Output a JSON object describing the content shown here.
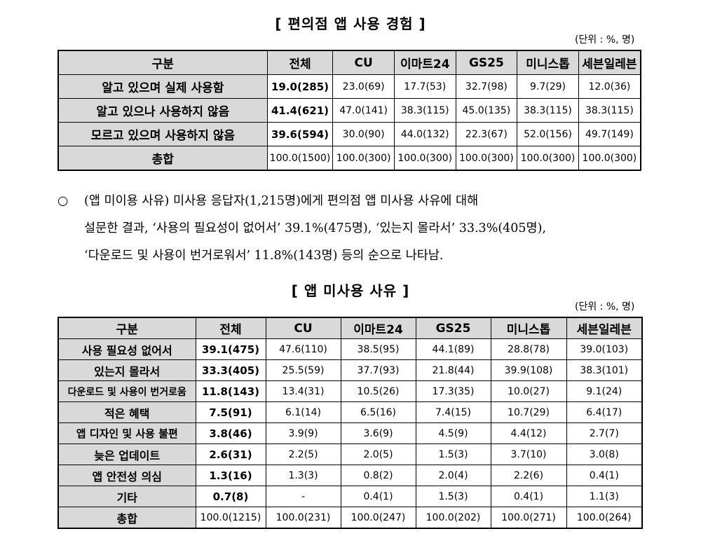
{
  "table1": {
    "title": "[ 편의점 앱 사용 경험 ]",
    "unit": "(단위 : %, 명)",
    "headers": [
      "구분",
      "전체",
      "CU",
      "이마트24",
      "GS25",
      "미니스톱",
      "세븐일레븐"
    ],
    "rows": [
      {
        "label": "알고 있으며 실제 사용함",
        "values": [
          "19.0(285)",
          "23.0(69)",
          "17.7(53)",
          "32.7(98)",
          "9.7(29)",
          "12.0(36)"
        ]
      },
      {
        "label": "알고 있으나 사용하지 않음",
        "values": [
          "41.4(621)",
          "47.0(141)",
          "38.3(115)",
          "45.0(135)",
          "38.3(115)",
          "38.3(115)"
        ]
      },
      {
        "label": "모르고 있으며 사용하지 않음",
        "values": [
          "39.6(594)",
          "30.0(90)",
          "44.0(132)",
          "22.3(67)",
          "52.0(156)",
          "49.7(149)"
        ]
      },
      {
        "label": "총합",
        "values": [
          "100.0(1500)",
          "100.0(300)",
          "100.0(300)",
          "100.0(300)",
          "100.0(300)",
          "100.0(300)"
        ]
      }
    ]
  },
  "paragraph": {
    "bullet": "○",
    "lines": [
      "(앱 미이용 사유) 미사용 응답자(1,215명)에게 편의점 앱 미사용 사유에 대해",
      "설문한 결과, ‘사용의 필요성이 없어서’ 39.1%(475명), ‘있는지 몰라서’ 33.3%(405명),",
      "‘다운로드 및 사용이 번거로워서’ 11.8%(143명) 등의 순으로 나타남."
    ]
  },
  "table2": {
    "title": "[ 앱 미사용 사유 ]",
    "unit": "(단위 : %, 명)",
    "headers": [
      "구분",
      "전체",
      "CU",
      "이마트24",
      "GS25",
      "미니스톱",
      "세븐일레븐"
    ],
    "rows": [
      {
        "label": "사용 필요성 없어서",
        "values": [
          "39.1(475)",
          "47.6(110)",
          "38.5(95)",
          "44.1(89)",
          "28.8(78)",
          "39.0(103)"
        ]
      },
      {
        "label": "있는지 몰라서",
        "values": [
          "33.3(405)",
          "25.5(59)",
          "37.7(93)",
          "21.8(44)",
          "39.9(108)",
          "38.3(101)"
        ]
      },
      {
        "label": "다운로드 및 사용이 번거로움",
        "values": [
          "11.8(143)",
          "13.4(31)",
          "10.5(26)",
          "17.3(35)",
          "10.0(27)",
          "9.1(24)"
        ]
      },
      {
        "label": "적은 혜택",
        "values": [
          "7.5(91)",
          "6.1(14)",
          "6.5(16)",
          "7.4(15)",
          "10.7(29)",
          "6.4(17)"
        ]
      },
      {
        "label": "앱 디자인 및 사용 불편",
        "values": [
          "3.8(46)",
          "3.9(9)",
          "3.6(9)",
          "4.5(9)",
          "4.4(12)",
          "2.7(7)"
        ]
      },
      {
        "label": "늦은 업데이트",
        "values": [
          "2.6(31)",
          "2.2(5)",
          "2.0(5)",
          "1.5(3)",
          "3.7(10)",
          "3.0(8)"
        ]
      },
      {
        "label": "앱 안전성 의심",
        "values": [
          "1.3(16)",
          "1.3(3)",
          "0.8(2)",
          "2.0(4)",
          "2.2(6)",
          "0.4(1)"
        ]
      },
      {
        "label": "기타",
        "values": [
          "0.7(8)",
          "-",
          "0.4(1)",
          "1.5(3)",
          "0.4(1)",
          "1.1(3)"
        ]
      },
      {
        "label": "총합",
        "values": [
          "100.0(1215)",
          "100.0(231)",
          "100.0(247)",
          "100.0(202)",
          "100.0(271)",
          "100.0(264)"
        ]
      }
    ]
  }
}
